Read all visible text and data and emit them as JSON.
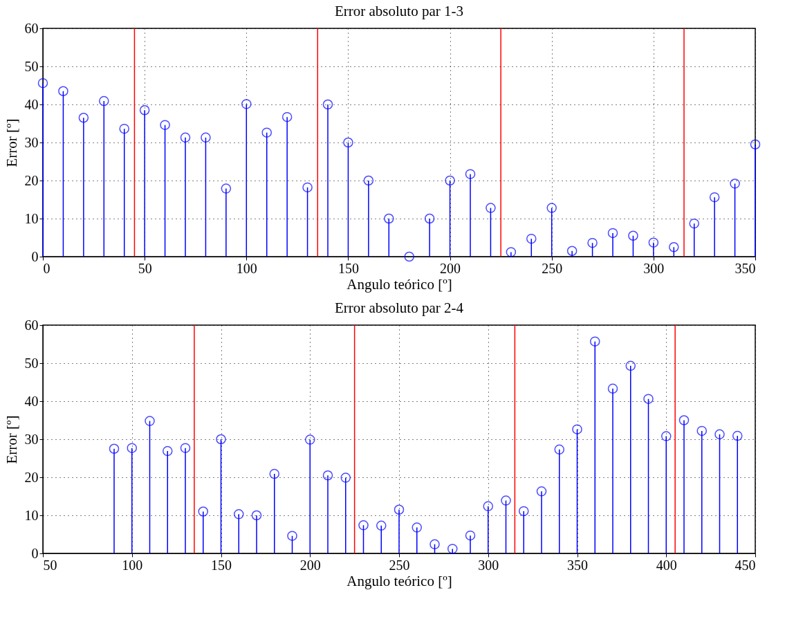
{
  "chart_data": [
    {
      "type": "lollipop",
      "title": "Error absoluto par 1-3",
      "xlabel": "Angulo teórico [º]",
      "ylabel": "Error [º]",
      "x": [
        0,
        10,
        20,
        30,
        40,
        50,
        60,
        70,
        80,
        90,
        100,
        110,
        120,
        130,
        140,
        150,
        160,
        170,
        180,
        190,
        200,
        210,
        220,
        230,
        240,
        250,
        260,
        270,
        280,
        290,
        300,
        310,
        320,
        330,
        340,
        350
      ],
      "series": [
        {
          "color": "#0000ff",
          "values": [
            45.6,
            43.5,
            36.5,
            40.9,
            33.6,
            38.5,
            34.6,
            31.3,
            31.3,
            17.9,
            40.1,
            32.6,
            36.7,
            18.2,
            40.0,
            30.0,
            20.0,
            10.0,
            0.0,
            10.0,
            20.0,
            21.7,
            12.8,
            1.2,
            4.7,
            12.8,
            1.5,
            3.6,
            6.2,
            5.5,
            3.7,
            2.5,
            8.7,
            15.6,
            19.2,
            29.5
          ]
        }
      ],
      "xlim": [
        0,
        350
      ],
      "xticks": [
        0,
        50,
        100,
        150,
        200,
        250,
        300,
        350
      ],
      "ylim": [
        0,
        60
      ],
      "yticks": [
        0,
        10,
        20,
        30,
        40,
        50,
        60
      ],
      "ref_lines": [
        {
          "axis": "x",
          "value": 45,
          "color": "#ff0000"
        },
        {
          "axis": "x",
          "value": 135,
          "color": "#ff0000"
        },
        {
          "axis": "x",
          "value": 225,
          "color": "#ff0000"
        },
        {
          "axis": "x",
          "value": 315,
          "color": "#ff0000"
        }
      ],
      "grid": true,
      "marker": "circle"
    },
    {
      "type": "lollipop",
      "title": "Error absoluto par 2-4",
      "xlabel": "Angulo teórico [º]",
      "ylabel": "Error [º]",
      "x": [
        90,
        100,
        110,
        120,
        130,
        140,
        150,
        160,
        170,
        180,
        190,
        200,
        210,
        220,
        230,
        240,
        250,
        260,
        270,
        280,
        290,
        300,
        310,
        320,
        330,
        340,
        350,
        360,
        370,
        380,
        390,
        400,
        410,
        420,
        430,
        440
      ],
      "series": [
        {
          "color": "#0000ff",
          "values": [
            27.5,
            27.7,
            34.8,
            26.9,
            27.7,
            11.0,
            30.0,
            10.3,
            10.0,
            20.9,
            4.6,
            29.9,
            20.5,
            19.9,
            7.4,
            7.3,
            11.5,
            6.8,
            2.4,
            1.2,
            4.7,
            12.4,
            13.9,
            11.1,
            16.3,
            27.3,
            32.6,
            55.7,
            43.3,
            49.3,
            40.6,
            30.8,
            35.0,
            32.2,
            31.3,
            30.9
          ]
        }
      ],
      "xlim": [
        50,
        450
      ],
      "xticks": [
        50,
        100,
        150,
        200,
        250,
        300,
        350,
        400,
        450
      ],
      "ylim": [
        0,
        60
      ],
      "yticks": [
        0,
        10,
        20,
        30,
        40,
        50,
        60
      ],
      "ref_lines": [
        {
          "axis": "x",
          "value": 135,
          "color": "#ff0000"
        },
        {
          "axis": "x",
          "value": 225,
          "color": "#ff0000"
        },
        {
          "axis": "x",
          "value": 315,
          "color": "#ff0000"
        },
        {
          "axis": "x",
          "value": 405,
          "color": "#ff0000"
        }
      ],
      "grid": true,
      "marker": "circle"
    }
  ]
}
